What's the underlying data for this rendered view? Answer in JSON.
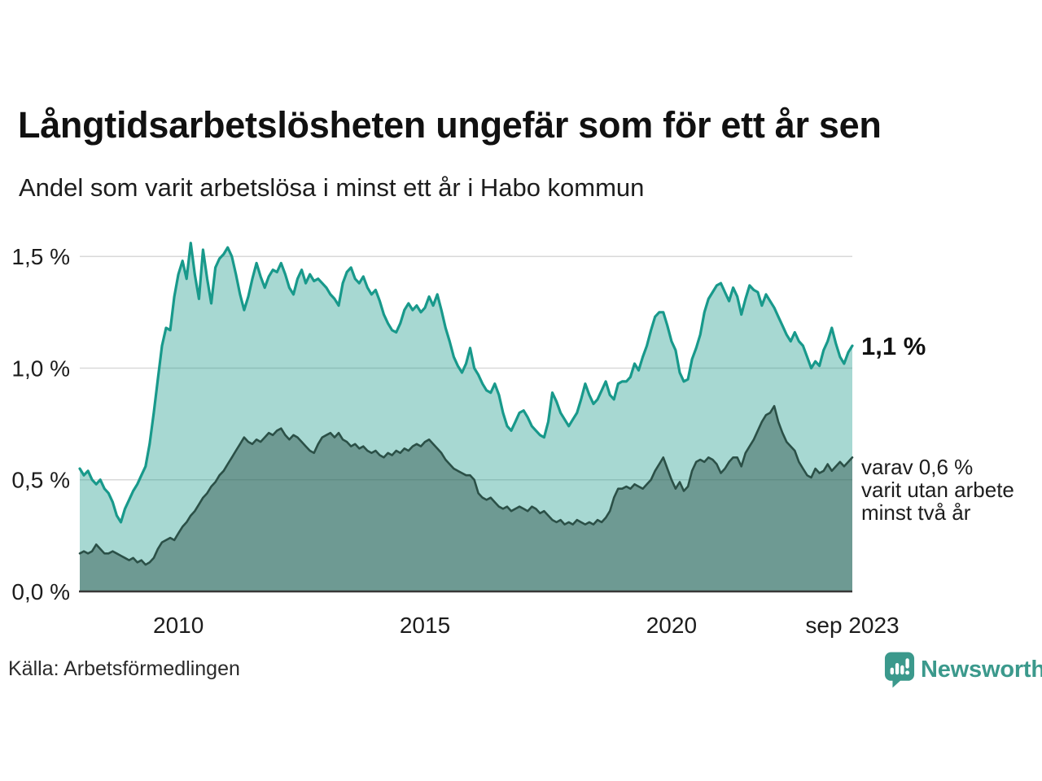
{
  "title": "Långtidsarbetslösheten ungefär som för ett år sen",
  "subtitle": "Andel som varit arbetslösa i minst ett år i Habo kommun",
  "source": "Källa: Arbetsförmedlingen",
  "branding": {
    "name": "Newsworthy",
    "logo_icon": "bar-chart-speech-bubble",
    "color": "#3b998c"
  },
  "annotations": {
    "latest_total": "1,1 %",
    "two_year_lines": [
      "varav 0,6 %",
      "varit utan arbete",
      "minst två år"
    ]
  },
  "chart_data": {
    "type": "area",
    "title": "Långtidsarbetslösheten ungefär som för ett år sen",
    "subtitle": "Andel som varit arbetslösa i minst ett år i Habo kommun",
    "x_unit": "monthly",
    "x_start": 2008.0,
    "x_end": 2023.6667,
    "ylim": [
      0,
      1.61
    ],
    "grid": "horizontal",
    "legend": "none",
    "colors": {
      "line_one_year": "#18998b",
      "fill_one_year": "rgba(24,153,138,0.38)",
      "line_two_year": "#2b5047",
      "fill_two_year": "rgba(43,80,71,0.45)",
      "gridline": "#d9d9d9",
      "axis_line": "#383838"
    },
    "yticks": [
      {
        "label": "0,0 %",
        "value": 0
      },
      {
        "label": "0,5 %",
        "value": 0.5
      },
      {
        "label": "1,0 %",
        "value": 1.0
      },
      {
        "label": "1,5 %",
        "value": 1.5
      }
    ],
    "xticks": [
      {
        "label": "2010",
        "value": 2010.0
      },
      {
        "label": "2015",
        "value": 2015.0
      },
      {
        "label": "2020",
        "value": 2020.0
      },
      {
        "label": "sep 2023",
        "value": 2023.6667
      }
    ],
    "series": [
      {
        "name": "Arbetslösa minst ett år",
        "end_label": "1,1 %",
        "stroke": "#18998b",
        "fill": "rgba(24,153,138,0.38)",
        "stroke_width": 3.2,
        "values": [
          0.55,
          0.52,
          0.54,
          0.5,
          0.48,
          0.5,
          0.46,
          0.44,
          0.4,
          0.34,
          0.31,
          0.37,
          0.41,
          0.45,
          0.48,
          0.52,
          0.56,
          0.66,
          0.8,
          0.95,
          1.1,
          1.18,
          1.17,
          1.32,
          1.42,
          1.48,
          1.4,
          1.56,
          1.42,
          1.31,
          1.53,
          1.4,
          1.29,
          1.45,
          1.49,
          1.51,
          1.54,
          1.5,
          1.42,
          1.33,
          1.26,
          1.32,
          1.4,
          1.47,
          1.41,
          1.36,
          1.41,
          1.44,
          1.43,
          1.47,
          1.42,
          1.36,
          1.33,
          1.4,
          1.44,
          1.38,
          1.42,
          1.39,
          1.4,
          1.38,
          1.36,
          1.33,
          1.31,
          1.28,
          1.38,
          1.43,
          1.45,
          1.4,
          1.38,
          1.41,
          1.36,
          1.33,
          1.35,
          1.3,
          1.24,
          1.2,
          1.17,
          1.16,
          1.2,
          1.26,
          1.29,
          1.26,
          1.28,
          1.25,
          1.27,
          1.32,
          1.28,
          1.33,
          1.26,
          1.18,
          1.12,
          1.05,
          1.01,
          0.98,
          1.02,
          1.09,
          1.0,
          0.97,
          0.93,
          0.9,
          0.89,
          0.93,
          0.88,
          0.8,
          0.74,
          0.72,
          0.76,
          0.8,
          0.81,
          0.78,
          0.74,
          0.72,
          0.7,
          0.69,
          0.76,
          0.89,
          0.85,
          0.8,
          0.77,
          0.74,
          0.77,
          0.8,
          0.86,
          0.93,
          0.88,
          0.84,
          0.86,
          0.9,
          0.94,
          0.88,
          0.86,
          0.93,
          0.94,
          0.94,
          0.96,
          1.02,
          0.99,
          1.05,
          1.1,
          1.17,
          1.23,
          1.25,
          1.25,
          1.19,
          1.12,
          1.08,
          0.98,
          0.94,
          0.95,
          1.04,
          1.09,
          1.15,
          1.25,
          1.31,
          1.34,
          1.37,
          1.38,
          1.34,
          1.3,
          1.36,
          1.32,
          1.24,
          1.31,
          1.37,
          1.35,
          1.34,
          1.28,
          1.33,
          1.3,
          1.27,
          1.23,
          1.19,
          1.15,
          1.12,
          1.16,
          1.12,
          1.1,
          1.05,
          1.0,
          1.03,
          1.01,
          1.08,
          1.12,
          1.18,
          1.11,
          1.05,
          1.02,
          1.07,
          1.1
        ]
      },
      {
        "name": "Utan arbete minst två år",
        "end_label": "varav 0,6 % varit utan arbete minst två år",
        "stroke": "#2b5047",
        "fill": "rgba(43,80,71,0.45)",
        "stroke_width": 2.6,
        "values": [
          0.17,
          0.18,
          0.17,
          0.18,
          0.21,
          0.19,
          0.17,
          0.17,
          0.18,
          0.17,
          0.16,
          0.15,
          0.14,
          0.15,
          0.13,
          0.14,
          0.12,
          0.13,
          0.15,
          0.19,
          0.22,
          0.23,
          0.24,
          0.23,
          0.26,
          0.29,
          0.31,
          0.34,
          0.36,
          0.39,
          0.42,
          0.44,
          0.47,
          0.49,
          0.52,
          0.54,
          0.57,
          0.6,
          0.63,
          0.66,
          0.69,
          0.67,
          0.66,
          0.68,
          0.67,
          0.69,
          0.71,
          0.7,
          0.72,
          0.73,
          0.7,
          0.68,
          0.7,
          0.69,
          0.67,
          0.65,
          0.63,
          0.62,
          0.66,
          0.69,
          0.7,
          0.71,
          0.69,
          0.71,
          0.68,
          0.67,
          0.65,
          0.66,
          0.64,
          0.65,
          0.63,
          0.62,
          0.63,
          0.61,
          0.6,
          0.62,
          0.61,
          0.63,
          0.62,
          0.64,
          0.63,
          0.65,
          0.66,
          0.65,
          0.67,
          0.68,
          0.66,
          0.64,
          0.62,
          0.59,
          0.57,
          0.55,
          0.54,
          0.53,
          0.52,
          0.52,
          0.5,
          0.44,
          0.42,
          0.41,
          0.42,
          0.4,
          0.38,
          0.37,
          0.38,
          0.36,
          0.37,
          0.38,
          0.37,
          0.36,
          0.38,
          0.37,
          0.35,
          0.36,
          0.34,
          0.32,
          0.31,
          0.32,
          0.3,
          0.31,
          0.3,
          0.32,
          0.31,
          0.3,
          0.31,
          0.3,
          0.32,
          0.31,
          0.33,
          0.36,
          0.42,
          0.46,
          0.46,
          0.47,
          0.46,
          0.48,
          0.47,
          0.46,
          0.48,
          0.5,
          0.54,
          0.57,
          0.6,
          0.55,
          0.5,
          0.46,
          0.49,
          0.45,
          0.47,
          0.54,
          0.58,
          0.59,
          0.58,
          0.6,
          0.59,
          0.57,
          0.53,
          0.55,
          0.58,
          0.6,
          0.6,
          0.56,
          0.62,
          0.65,
          0.68,
          0.72,
          0.76,
          0.79,
          0.8,
          0.83,
          0.76,
          0.71,
          0.67,
          0.65,
          0.63,
          0.58,
          0.55,
          0.52,
          0.51,
          0.55,
          0.53,
          0.54,
          0.57,
          0.54,
          0.56,
          0.58,
          0.56,
          0.58,
          0.6
        ]
      }
    ]
  }
}
